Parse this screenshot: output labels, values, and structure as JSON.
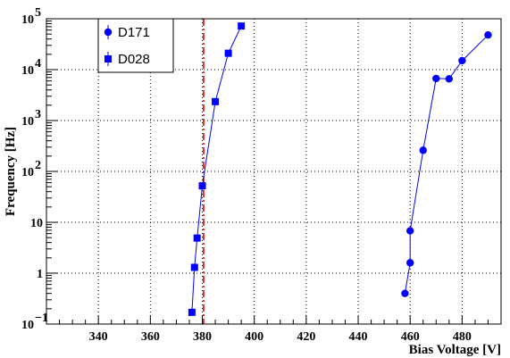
{
  "chart_data": {
    "type": "scatter",
    "title": "",
    "xlabel": "Bias Voltage [V]",
    "ylabel": "Frequency [Hz]",
    "xlim": [
      320,
      495
    ],
    "ylim": [
      0.1,
      100000
    ],
    "y_scale": "log",
    "grid": true,
    "legend_position": "top-left",
    "x_ticks": [
      {
        "value": 340,
        "label": "340"
      },
      {
        "value": 360,
        "label": "360"
      },
      {
        "value": 380,
        "label": "380"
      },
      {
        "value": 400,
        "label": "400"
      },
      {
        "value": 420,
        "label": "420"
      },
      {
        "value": 440,
        "label": "440"
      },
      {
        "value": 460,
        "label": "460"
      },
      {
        "value": 480,
        "label": "480"
      }
    ],
    "y_ticks": [
      {
        "value": 0.1,
        "base": "10",
        "exp": "−1"
      },
      {
        "value": 1,
        "base": "1",
        "exp": ""
      },
      {
        "value": 10,
        "base": "10",
        "exp": ""
      },
      {
        "value": 100,
        "base": "10",
        "exp": "2"
      },
      {
        "value": 1000,
        "base": "10",
        "exp": "3"
      },
      {
        "value": 10000,
        "base": "10",
        "exp": "4"
      },
      {
        "value": 100000,
        "base": "10",
        "exp": "5"
      }
    ],
    "series": [
      {
        "name": "D171",
        "marker": "circle",
        "color": "#0000ff",
        "points": [
          {
            "x": 458,
            "y": 0.4
          },
          {
            "x": 460,
            "y": 1.6
          },
          {
            "x": 460,
            "y": 6.8
          },
          {
            "x": 465,
            "y": 260
          },
          {
            "x": 470,
            "y": 6700
          },
          {
            "x": 475,
            "y": 6600
          },
          {
            "x": 480,
            "y": 15000
          },
          {
            "x": 490,
            "y": 48000
          }
        ]
      },
      {
        "name": "D028",
        "marker": "square",
        "color": "#0000ff",
        "points": [
          {
            "x": 376,
            "y": 0.17
          },
          {
            "x": 377,
            "y": 1.3
          },
          {
            "x": 378,
            "y": 4.9
          },
          {
            "x": 380,
            "y": 52
          },
          {
            "x": 385,
            "y": 2350
          },
          {
            "x": 390,
            "y": 21000
          },
          {
            "x": 395,
            "y": 72000
          }
        ]
      }
    ],
    "reference_line": {
      "x": 380.5,
      "color": "#dd0000",
      "style": "dash-dot"
    }
  }
}
